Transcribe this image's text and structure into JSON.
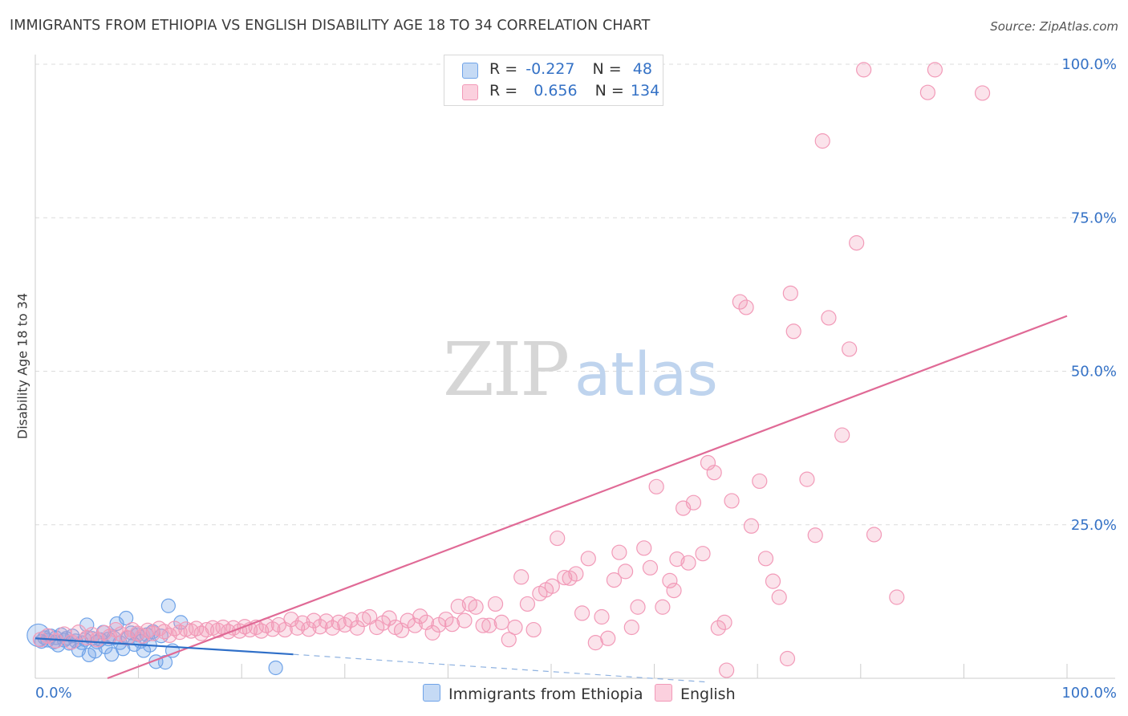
{
  "title": "IMMIGRANTS FROM ETHIOPIA VS ENGLISH DISABILITY AGE 18 TO 34 CORRELATION CHART",
  "source": "Source: ZipAtlas.com",
  "watermark": {
    "zip": "ZIP",
    "atlas": "atlas"
  },
  "legend_top": [
    {
      "r_label": "R =",
      "r_value": "-0.227",
      "n_label": "N =",
      "n_value": "48"
    },
    {
      "r_label": "R =",
      "r_value": "0.656",
      "n_label": "N =",
      "n_value": "134"
    }
  ],
  "chart_data": {
    "type": "scatter",
    "xlabel": "",
    "ylabel": "Disability Age 18 to 34",
    "xlim": [
      0,
      100
    ],
    "ylim": [
      0,
      100
    ],
    "x_tick_labels": [
      "0.0%",
      "100.0%"
    ],
    "y_tick_labels": [
      "25.0%",
      "50.0%",
      "75.0%",
      "100.0%"
    ],
    "y_ticks": [
      25,
      50,
      75,
      100
    ],
    "grid": "dashed horizontal",
    "legend_placement": "bottom-center",
    "colors": {
      "ethiopia": "#6fa3e8",
      "english": "#f29ab8",
      "ethiopia_line": "#2f6fc8",
      "english_line": "#e06a96"
    },
    "series": [
      {
        "name": "Immigrants from Ethiopia",
        "trend": {
          "x": [
            0,
            25
          ],
          "y": [
            6.5,
            3.9
          ],
          "dashed_to": [
            65,
            -0.6
          ]
        },
        "points": [
          [
            0.3,
            7.0
          ],
          [
            0.6,
            6.0
          ],
          [
            0.9,
            6.6
          ],
          [
            1.2,
            6.2
          ],
          [
            1.5,
            6.9
          ],
          [
            1.8,
            5.9
          ],
          [
            2.0,
            6.6
          ],
          [
            2.2,
            5.4
          ],
          [
            2.5,
            7.1
          ],
          [
            2.8,
            6.2
          ],
          [
            3.0,
            6.5
          ],
          [
            3.3,
            5.7
          ],
          [
            3.6,
            6.9
          ],
          [
            3.9,
            6.1
          ],
          [
            4.2,
            4.6
          ],
          [
            4.5,
            5.8
          ],
          [
            4.8,
            6.3
          ],
          [
            5.0,
            8.7
          ],
          [
            5.2,
            3.8
          ],
          [
            5.5,
            6.5
          ],
          [
            5.8,
            4.4
          ],
          [
            6.0,
            5.9
          ],
          [
            6.3,
            6.3
          ],
          [
            6.6,
            7.5
          ],
          [
            6.8,
            5.1
          ],
          [
            7.1,
            6.4
          ],
          [
            7.4,
            3.9
          ],
          [
            7.6,
            6.6
          ],
          [
            7.9,
            8.9
          ],
          [
            8.2,
            5.8
          ],
          [
            8.5,
            4.8
          ],
          [
            8.8,
            9.8
          ],
          [
            9.0,
            6.6
          ],
          [
            9.3,
            7.4
          ],
          [
            9.6,
            5.5
          ],
          [
            9.9,
            7.1
          ],
          [
            10.2,
            6.0
          ],
          [
            10.5,
            4.5
          ],
          [
            10.8,
            7.1
          ],
          [
            11.1,
            5.4
          ],
          [
            11.4,
            7.6
          ],
          [
            11.7,
            2.7
          ],
          [
            12.2,
            6.9
          ],
          [
            12.6,
            2.6
          ],
          [
            12.9,
            11.8
          ],
          [
            13.3,
            4.5
          ],
          [
            14.1,
            9.1
          ],
          [
            23.3,
            1.7
          ]
        ]
      },
      {
        "name": "English",
        "trend": {
          "x": [
            7,
            100
          ],
          "y": [
            0.0,
            59.0
          ]
        },
        "points": [
          [
            0.5,
            6.3
          ],
          [
            1.2,
            6.9
          ],
          [
            2.0,
            6.1
          ],
          [
            2.8,
            7.2
          ],
          [
            3.5,
            5.9
          ],
          [
            4.2,
            7.5
          ],
          [
            5.0,
            6.6
          ],
          [
            5.5,
            7.1
          ],
          [
            6.0,
            6.3
          ],
          [
            6.7,
            7.4
          ],
          [
            7.2,
            6.8
          ],
          [
            7.8,
            7.9
          ],
          [
            8.3,
            7.2
          ],
          [
            8.9,
            6.6
          ],
          [
            9.4,
            7.9
          ],
          [
            9.9,
            7.3
          ],
          [
            10.4,
            6.9
          ],
          [
            10.9,
            7.8
          ],
          [
            11.4,
            7.3
          ],
          [
            12.0,
            8.1
          ],
          [
            12.5,
            7.6
          ],
          [
            13.0,
            7.0
          ],
          [
            13.5,
            8.1
          ],
          [
            14.0,
            7.5
          ],
          [
            14.6,
            8.0
          ],
          [
            15.1,
            7.7
          ],
          [
            15.6,
            8.1
          ],
          [
            16.1,
            7.3
          ],
          [
            16.6,
            7.9
          ],
          [
            17.2,
            8.2
          ],
          [
            17.7,
            7.8
          ],
          [
            18.2,
            8.3
          ],
          [
            18.7,
            7.6
          ],
          [
            19.2,
            8.2
          ],
          [
            19.8,
            7.7
          ],
          [
            20.3,
            8.4
          ],
          [
            20.8,
            7.9
          ],
          [
            21.4,
            8.3
          ],
          [
            21.9,
            7.7
          ],
          [
            22.4,
            8.6
          ],
          [
            23.0,
            8.0
          ],
          [
            23.6,
            8.7
          ],
          [
            24.2,
            7.9
          ],
          [
            24.8,
            9.6
          ],
          [
            25.4,
            8.2
          ],
          [
            25.9,
            9.0
          ],
          [
            26.5,
            8.0
          ],
          [
            27.0,
            9.4
          ],
          [
            27.6,
            8.4
          ],
          [
            28.2,
            9.3
          ],
          [
            28.8,
            8.2
          ],
          [
            29.4,
            9.1
          ],
          [
            30.0,
            8.7
          ],
          [
            30.6,
            9.5
          ],
          [
            31.2,
            8.2
          ],
          [
            31.8,
            9.6
          ],
          [
            32.4,
            10.0
          ],
          [
            33.1,
            8.3
          ],
          [
            33.7,
            9.0
          ],
          [
            34.3,
            9.8
          ],
          [
            34.9,
            8.3
          ],
          [
            35.5,
            7.8
          ],
          [
            36.1,
            9.4
          ],
          [
            36.8,
            8.6
          ],
          [
            37.3,
            10.1
          ],
          [
            37.9,
            9.1
          ],
          [
            38.5,
            7.4
          ],
          [
            39.1,
            8.7
          ],
          [
            39.8,
            9.6
          ],
          [
            40.4,
            8.8
          ],
          [
            41.0,
            11.7
          ],
          [
            41.6,
            9.4
          ],
          [
            42.1,
            12.1
          ],
          [
            42.7,
            11.6
          ],
          [
            43.4,
            8.6
          ],
          [
            44.0,
            8.6
          ],
          [
            44.6,
            12.1
          ],
          [
            45.2,
            9.1
          ],
          [
            45.9,
            6.3
          ],
          [
            46.5,
            8.3
          ],
          [
            47.1,
            16.5
          ],
          [
            47.7,
            12.1
          ],
          [
            48.3,
            7.9
          ],
          [
            48.9,
            13.8
          ],
          [
            49.5,
            14.4
          ],
          [
            50.1,
            15.0
          ],
          [
            50.6,
            22.8
          ],
          [
            51.3,
            16.4
          ],
          [
            51.8,
            16.3
          ],
          [
            52.4,
            17.0
          ],
          [
            53.0,
            10.6
          ],
          [
            53.6,
            19.5
          ],
          [
            54.3,
            5.8
          ],
          [
            54.9,
            10.0
          ],
          [
            55.5,
            6.5
          ],
          [
            56.1,
            16.0
          ],
          [
            56.6,
            20.5
          ],
          [
            57.2,
            17.4
          ],
          [
            57.8,
            8.3
          ],
          [
            58.4,
            11.6
          ],
          [
            59.0,
            21.2
          ],
          [
            59.6,
            18.0
          ],
          [
            60.2,
            31.2
          ],
          [
            60.8,
            11.6
          ],
          [
            61.5,
            15.9
          ],
          [
            61.9,
            14.3
          ],
          [
            62.2,
            19.4
          ],
          [
            62.8,
            27.7
          ],
          [
            63.3,
            18.8
          ],
          [
            63.8,
            28.6
          ],
          [
            64.7,
            20.3
          ],
          [
            65.2,
            35.1
          ],
          [
            65.8,
            33.5
          ],
          [
            66.2,
            8.2
          ],
          [
            66.8,
            9.1
          ],
          [
            67.0,
            1.3
          ],
          [
            67.5,
            28.9
          ],
          [
            68.3,
            61.3
          ],
          [
            68.9,
            60.4
          ],
          [
            69.4,
            24.8
          ],
          [
            70.2,
            32.1
          ],
          [
            70.8,
            19.5
          ],
          [
            71.5,
            15.8
          ],
          [
            72.1,
            13.2
          ],
          [
            72.9,
            3.2
          ],
          [
            73.2,
            62.7
          ],
          [
            73.5,
            56.5
          ],
          [
            74.8,
            32.4
          ],
          [
            75.6,
            23.3
          ],
          [
            76.3,
            87.5
          ],
          [
            76.9,
            58.7
          ],
          [
            78.2,
            39.6
          ],
          [
            78.9,
            53.6
          ],
          [
            79.6,
            70.9
          ],
          [
            80.3,
            99.1
          ],
          [
            81.3,
            23.4
          ],
          [
            83.5,
            13.2
          ],
          [
            86.5,
            95.4
          ],
          [
            87.2,
            99.1
          ],
          [
            91.8,
            95.3
          ]
        ]
      }
    ]
  },
  "bottom_legend": [
    {
      "label": "Immigrants from Ethiopia"
    },
    {
      "label": "English"
    }
  ]
}
